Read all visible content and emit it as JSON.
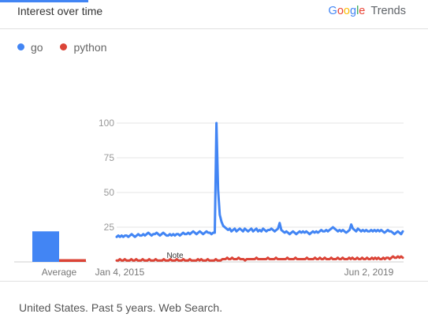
{
  "header": {
    "title": "Interest over time",
    "brand_logo": [
      "G",
      "o",
      "o",
      "g",
      "l",
      "e"
    ],
    "brand_logo_colors": [
      "#4285f4",
      "#ea4335",
      "#fbbc05",
      "#4285f4",
      "#34a853",
      "#ea4335"
    ],
    "brand_suffix": "Trends"
  },
  "legend": [
    {
      "label": "go",
      "color": "#4285f4"
    },
    {
      "label": "python",
      "color": "#db4437"
    }
  ],
  "footer": {
    "text": "United States. Past 5 years. Web Search."
  },
  "chart_data": [
    {
      "type": "bar",
      "categories": [
        "Average"
      ],
      "series": [
        {
          "name": "go",
          "values": [
            22
          ],
          "color": "#4285f4"
        },
        {
          "name": "python",
          "values": [
            2
          ],
          "color": "#db4437"
        }
      ],
      "ylim": [
        0,
        100
      ]
    },
    {
      "type": "line",
      "ylim": [
        0,
        100
      ],
      "yticks": [
        25,
        50,
        75,
        100
      ],
      "xtick_labels": [
        "Jan 4, 2015",
        "Jun 2, 2019"
      ],
      "grid": true,
      "annotation": "Note",
      "series": [
        {
          "name": "go",
          "color": "#4285f4",
          "values": [
            18,
            19,
            18,
            19,
            18,
            19,
            19,
            18,
            19,
            20,
            19,
            18,
            19,
            20,
            19,
            19,
            20,
            19,
            20,
            21,
            20,
            19,
            20,
            20,
            21,
            20,
            19,
            20,
            21,
            20,
            19,
            19,
            20,
            19,
            20,
            19,
            20,
            20,
            19,
            20,
            21,
            20,
            20,
            21,
            20,
            21,
            22,
            21,
            20,
            21,
            22,
            21,
            20,
            21,
            22,
            21,
            21,
            20,
            21,
            21,
            100,
            52,
            34,
            29,
            26,
            25,
            24,
            23,
            24,
            22,
            23,
            24,
            22,
            23,
            24,
            23,
            22,
            24,
            23,
            22,
            23,
            24,
            22,
            23,
            24,
            22,
            23,
            22,
            24,
            23,
            22,
            23,
            23,
            24,
            23,
            22,
            23,
            24,
            28,
            23,
            22,
            21,
            22,
            21,
            20,
            21,
            22,
            21,
            20,
            21,
            22,
            21,
            22,
            21,
            22,
            21,
            20,
            21,
            22,
            21,
            22,
            21,
            22,
            23,
            22,
            22,
            23,
            22,
            23,
            24,
            25,
            24,
            23,
            22,
            23,
            22,
            23,
            22,
            21,
            22,
            23,
            27,
            24,
            23,
            22,
            24,
            23,
            22,
            23,
            22,
            23,
            22,
            22,
            23,
            22,
            23,
            22,
            23,
            22,
            23,
            22,
            21,
            22,
            23,
            22,
            22,
            21,
            20,
            21,
            22,
            21,
            20,
            22
          ]
        },
        {
          "name": "python",
          "color": "#db4437",
          "values": [
            1,
            1,
            2,
            1,
            1,
            2,
            1,
            1,
            1,
            2,
            1,
            1,
            2,
            1,
            1,
            1,
            2,
            1,
            1,
            1,
            2,
            1,
            1,
            1,
            2,
            1,
            1,
            1,
            1,
            2,
            1,
            1,
            1,
            2,
            1,
            1,
            1,
            2,
            1,
            1,
            1,
            2,
            1,
            1,
            1,
            2,
            1,
            1,
            1,
            1,
            2,
            1,
            2,
            1,
            1,
            1,
            2,
            1,
            1,
            1,
            1,
            2,
            1,
            1,
            1,
            2,
            2,
            2,
            3,
            2,
            2,
            3,
            2,
            2,
            2,
            3,
            2,
            2,
            2,
            1,
            2,
            2,
            2,
            2,
            2,
            2,
            3,
            2,
            2,
            2,
            2,
            2,
            2,
            3,
            2,
            2,
            2,
            2,
            3,
            2,
            2,
            2,
            2,
            2,
            2,
            3,
            2,
            2,
            2,
            2,
            3,
            2,
            2,
            2,
            2,
            2,
            2,
            3,
            2,
            2,
            2,
            2,
            3,
            2,
            2,
            3,
            2,
            2,
            3,
            2,
            2,
            2,
            3,
            2,
            2,
            2,
            3,
            2,
            2,
            3,
            2,
            2,
            2,
            3,
            2,
            3,
            2,
            2,
            3,
            2,
            2,
            3,
            2,
            2,
            3,
            2,
            2,
            3,
            2,
            3,
            2,
            3,
            2,
            2,
            3,
            2,
            3,
            3,
            2,
            3,
            4,
            3,
            3,
            4,
            3,
            4,
            3
          ]
        }
      ]
    }
  ]
}
